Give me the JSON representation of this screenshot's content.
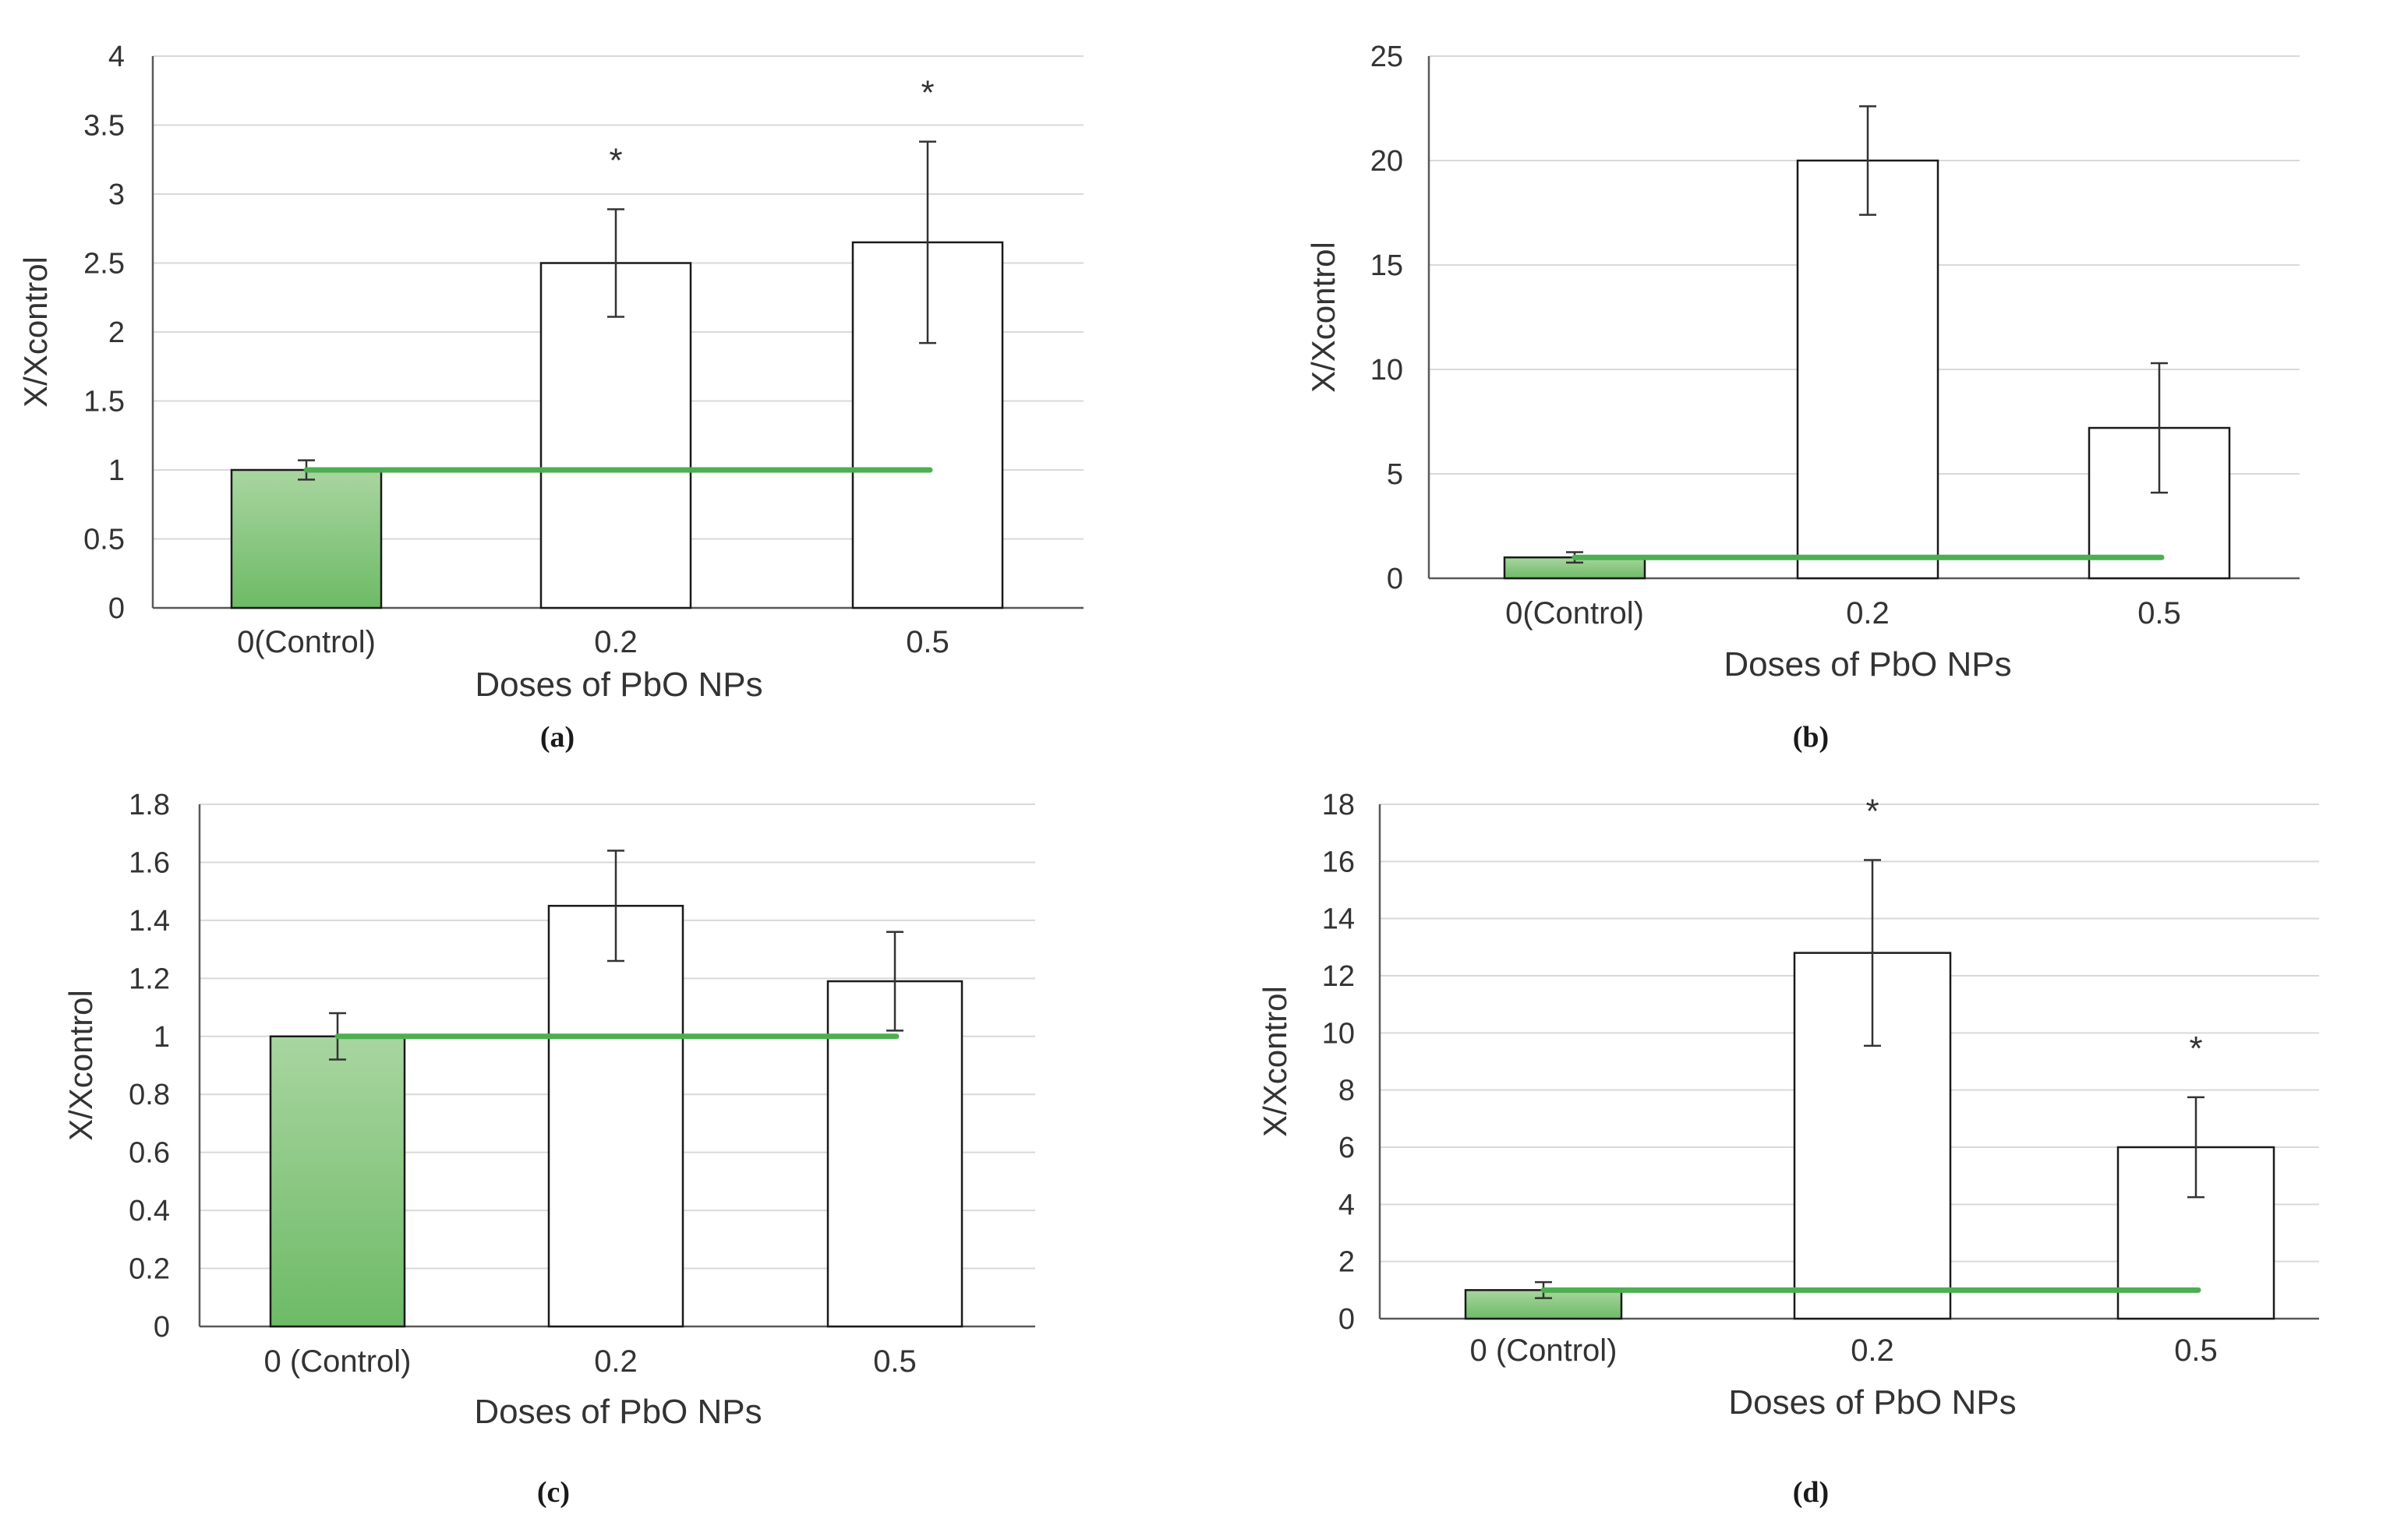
{
  "colors": {
    "control_fill_top": "#a9d5a0",
    "control_fill_bottom": "#6dbb66",
    "reference_line": "#4caf50",
    "bar_fill": "#ffffff",
    "bar_stroke": "#1a1a1a",
    "grid": "#d9d9d9",
    "axis": "#595959"
  },
  "chart_data": [
    {
      "panel": "(a)",
      "type": "bar",
      "categories": [
        "0(Control)",
        "0.2",
        "0.5"
      ],
      "values": [
        1.0,
        2.5,
        2.65
      ],
      "errors": [
        0.07,
        0.39,
        0.73
      ],
      "significance": [
        "",
        "*",
        "*"
      ],
      "reference_line": 1,
      "xlabel": "Doses of PbO NPs",
      "ylabel": "X/Xcontrol",
      "ylim": [
        0,
        4
      ],
      "yticks": [
        0,
        0.5,
        1,
        1.5,
        2,
        2.5,
        3,
        3.5,
        4
      ],
      "ytick_labels": [
        "0",
        "0.5",
        "1",
        "1.5",
        "2",
        "2.5",
        "3",
        "3.5",
        "4"
      ]
    },
    {
      "panel": "(b)",
      "type": "bar",
      "categories": [
        "0(Control)",
        "0.2",
        "0.5"
      ],
      "values": [
        1.0,
        20.0,
        7.2
      ],
      "errors": [
        0.25,
        2.6,
        3.1
      ],
      "significance": [
        "",
        "",
        ""
      ],
      "reference_line": 1,
      "xlabel": "Doses of PbO NPs",
      "ylabel": "X/Xcontrol",
      "ylim": [
        0,
        25
      ],
      "yticks": [
        0,
        5,
        10,
        15,
        20,
        25
      ],
      "ytick_labels": [
        "0",
        "5",
        "10",
        "15",
        "20",
        "25"
      ]
    },
    {
      "panel": "(c)",
      "type": "bar",
      "categories": [
        "0 (Control)",
        "0.2",
        "0.5"
      ],
      "values": [
        1.0,
        1.45,
        1.19
      ],
      "errors": [
        0.08,
        0.19,
        0.17
      ],
      "significance": [
        "",
        "",
        ""
      ],
      "reference_line": 1,
      "xlabel": "Doses of PbO NPs",
      "ylabel": "X/Xcontrol",
      "ylim": [
        0,
        1.8
      ],
      "yticks": [
        0,
        0.2,
        0.4,
        0.6,
        0.8,
        1,
        1.2,
        1.4,
        1.6,
        1.8
      ],
      "ytick_labels": [
        "0",
        "0.2",
        "0.4",
        "0.6",
        "0.8",
        "1",
        "1.2",
        "1.4",
        "1.6",
        "1.8"
      ]
    },
    {
      "panel": "(d)",
      "type": "bar",
      "categories": [
        "0 (Control)",
        "0.2",
        "0.5"
      ],
      "values": [
        1.0,
        12.8,
        6.0
      ],
      "errors": [
        0.28,
        3.25,
        1.75
      ],
      "significance": [
        "",
        "*",
        "*"
      ],
      "reference_line": 1,
      "xlabel": "Doses of PbO NPs",
      "ylabel": "X/Xcontrol",
      "ylim": [
        0,
        18
      ],
      "yticks": [
        0,
        2,
        4,
        6,
        8,
        10,
        12,
        14,
        16,
        18
      ],
      "ytick_labels": [
        "0",
        "2",
        "4",
        "6",
        "8",
        "10",
        "12",
        "14",
        "16",
        "18"
      ]
    }
  ]
}
